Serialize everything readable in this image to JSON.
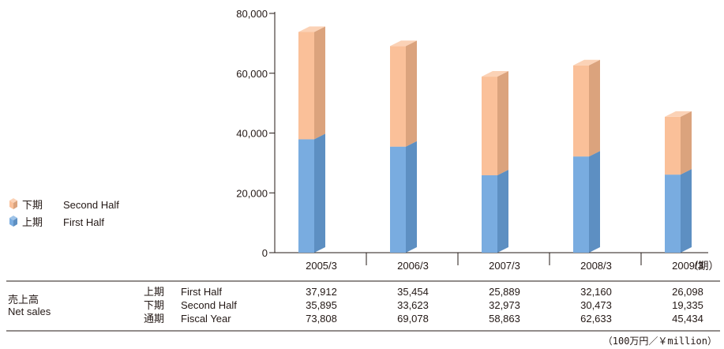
{
  "chart_data": {
    "type": "bar",
    "stacked": true,
    "categories": [
      "2005/3",
      "2006/3",
      "2007/3",
      "2008/3",
      "2009/3"
    ],
    "category_suffix": "（期）",
    "series": [
      {
        "name": "上期　First Half",
        "values": [
          37912,
          35454,
          25889,
          32160,
          26098
        ],
        "color": "#6aa3dc"
      },
      {
        "name": "下期　Second Half",
        "values": [
          35895,
          33623,
          32973,
          30473,
          19335
        ],
        "color": "#f9b98e"
      }
    ],
    "ylim": [
      0,
      80000
    ],
    "yticks": [
      "0",
      "20,000",
      "40,000",
      "60,000",
      "80,000"
    ],
    "ytick_values": [
      0,
      20000,
      40000,
      60000,
      80000
    ],
    "legend": [
      {
        "label_jp": "下期",
        "label_en": "Second Half",
        "color": "#f9b98e"
      },
      {
        "label_jp": "上期",
        "label_en": "First Half",
        "color": "#6aa3dc"
      }
    ],
    "legend_placement": "left"
  },
  "table": {
    "row_header_jp": "売上高",
    "row_header_en": "Net sales",
    "rows": [
      {
        "label_jp": "上期",
        "label_en": "First Half",
        "values": [
          "37,912",
          "35,454",
          "25,889",
          "32,160",
          "26,098"
        ]
      },
      {
        "label_jp": "下期",
        "label_en": "Second Half",
        "values": [
          "35,895",
          "33,623",
          "32,973",
          "30,473",
          "19,335"
        ]
      },
      {
        "label_jp": "通期",
        "label_en": "Fiscal Year",
        "values": [
          "73,808",
          "69,078",
          "58,863",
          "62,633",
          "45,434"
        ]
      }
    ],
    "unit": "（100万円／￥million）"
  }
}
